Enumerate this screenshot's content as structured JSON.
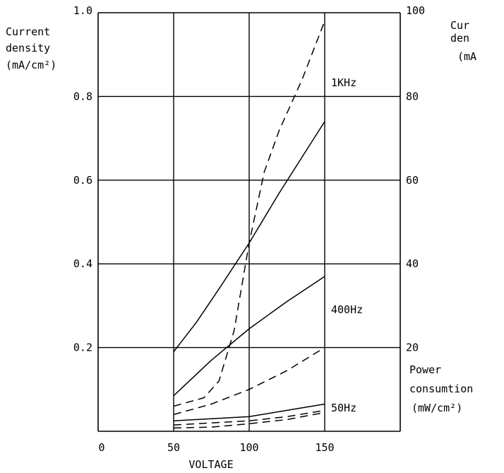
{
  "chart_data": {
    "type": "line",
    "xlabel": "VOLTAGE",
    "x_ticks": [
      "0",
      "50",
      "100",
      "150"
    ],
    "xlim": [
      0,
      200
    ],
    "y_left": {
      "label_lines": [
        "Current",
        "density",
        "(mA/cm²)"
      ],
      "ticks": [
        "1.0",
        "0.8",
        "0.6",
        "0.4",
        "0.2"
      ],
      "ylim": [
        0,
        1.0
      ]
    },
    "y_right": {
      "ticks": [
        "100",
        "80",
        "60",
        "40",
        "20"
      ],
      "ylim": [
        0,
        100
      ],
      "top_label_lines": [
        "Cur",
        "den",
        "(mA"
      ],
      "bottom_label_lines": [
        "Power",
        "consumtion",
        "(mW/cm²)"
      ]
    },
    "series": [
      {
        "name": "1KHz",
        "style": "solid",
        "axis": "left",
        "x": [
          50,
          65,
          80,
          100,
          120,
          150
        ],
        "y": [
          0.19,
          0.26,
          0.34,
          0.45,
          0.57,
          0.74
        ]
      },
      {
        "name": "1KHz",
        "style": "dashed",
        "axis": "right",
        "x": [
          50,
          70,
          80,
          90,
          100,
          110,
          120,
          135,
          150
        ],
        "y": [
          6,
          8,
          12,
          24,
          45,
          62,
          72,
          84,
          98
        ]
      },
      {
        "name": "400Hz",
        "style": "solid",
        "axis": "left",
        "x": [
          50,
          75,
          100,
          125,
          150
        ],
        "y": [
          0.085,
          0.17,
          0.245,
          0.31,
          0.37
        ]
      },
      {
        "name": "400Hz",
        "style": "dashed",
        "axis": "right",
        "x": [
          50,
          75,
          100,
          125,
          150
        ],
        "y": [
          4,
          6.5,
          10,
          14.5,
          20
        ]
      },
      {
        "name": "50Hz",
        "style": "solid",
        "axis": "left",
        "x": [
          50,
          75,
          100,
          125,
          150
        ],
        "y": [
          0.025,
          0.03,
          0.035,
          0.05,
          0.065
        ]
      },
      {
        "name": "50Hz",
        "style": "dashed",
        "axis": "right",
        "x": [
          50,
          75,
          100,
          125,
          150
        ],
        "y": [
          1.5,
          2,
          2.5,
          3.5,
          5
        ]
      },
      {
        "name": "50Hz",
        "style": "dashed",
        "axis": "right",
        "x": [
          50,
          75,
          100,
          125,
          150
        ],
        "y": [
          0.8,
          1.0,
          1.8,
          2.8,
          4.5
        ]
      }
    ],
    "series_labels": [
      "1KHz",
      "400Hz",
      "50Hz"
    ],
    "grid": true,
    "legend": "inline"
  }
}
